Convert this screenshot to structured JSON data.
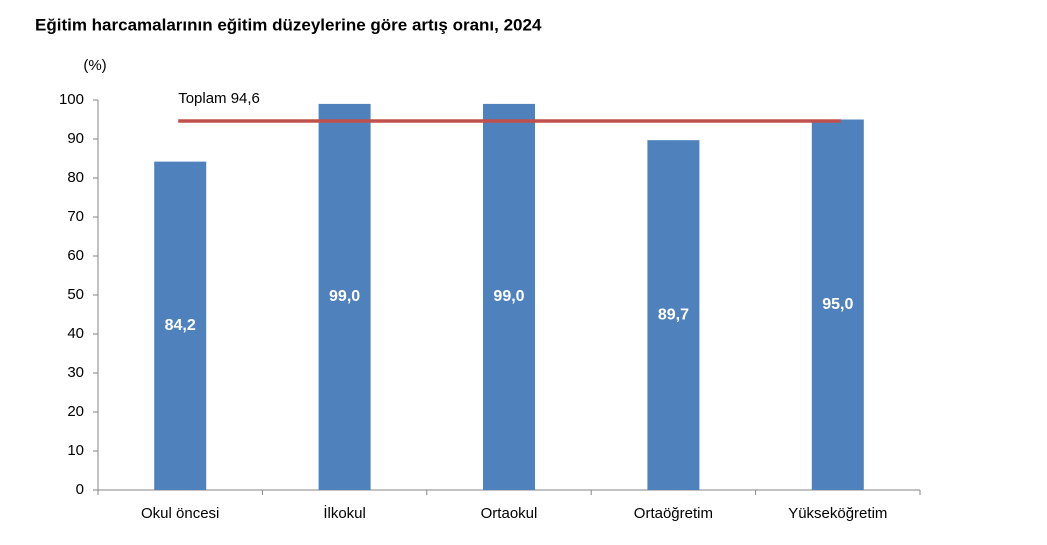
{
  "chart_data": {
    "type": "bar",
    "title": "Eğitim harcamalarının eğitim düzeylerine göre artış oranı, 2024",
    "y_axis_label": "(%)",
    "categories": [
      "Okul öncesi",
      "İlkokul",
      "Ortaokul",
      "Ortaöğretim",
      "Yükseköğretim"
    ],
    "values": [
      84.2,
      99.0,
      99.0,
      89.7,
      95.0
    ],
    "value_labels": [
      "84,2",
      "99,0",
      "99,0",
      "89,7",
      "95,0"
    ],
    "color": "#4f81bd",
    "reference_line": {
      "label": "Toplam 94,6",
      "value": 94.6,
      "color": "#c0504d"
    },
    "ylim": [
      0,
      100
    ],
    "yticks": [
      0,
      10,
      20,
      30,
      40,
      50,
      60,
      70,
      80,
      90,
      100
    ],
    "grid": false
  }
}
